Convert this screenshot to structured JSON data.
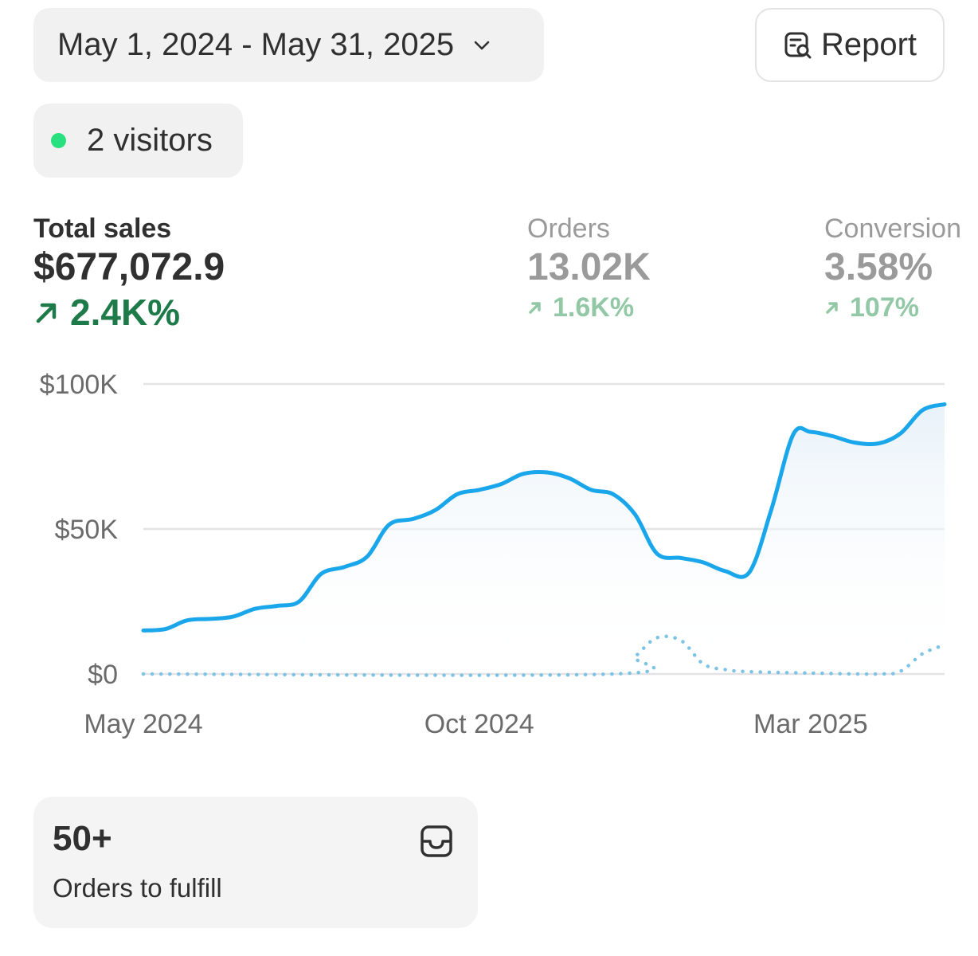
{
  "date_range": {
    "label": "May 1, 2024 - May 31, 2025"
  },
  "report_button": {
    "label": "Report"
  },
  "visitors": {
    "label": "2 visitors",
    "dot_color": "#29e07e"
  },
  "metrics": [
    {
      "label": "Total sales",
      "value": "$677,072.9",
      "change": "2.4K%",
      "active": true
    },
    {
      "label": "Orders",
      "value": "13.02K",
      "change": "1.6K%",
      "active": false
    },
    {
      "label": "Conversion",
      "value": "3.58%",
      "change": "107%",
      "active": false
    }
  ],
  "chart_data": {
    "type": "line",
    "y_ticks": [
      "$100K",
      "$50K",
      "$0"
    ],
    "x_ticks": [
      "May 2024",
      "Oct 2024",
      "Mar 2025"
    ],
    "ylim": [
      0,
      100000
    ],
    "grid": true,
    "series": [
      {
        "style": "solid",
        "color": "#1aa6ea",
        "points": [
          [
            "2024-05-01",
            15000
          ],
          [
            "2024-05-11",
            15500
          ],
          [
            "2024-05-21",
            18500
          ],
          [
            "2024-06-01",
            19000
          ],
          [
            "2024-06-11",
            19800
          ],
          [
            "2024-06-21",
            22500
          ],
          [
            "2024-07-01",
            23500
          ],
          [
            "2024-07-11",
            25000
          ],
          [
            "2024-07-21",
            34500
          ],
          [
            "2024-08-01",
            37000
          ],
          [
            "2024-08-11",
            40500
          ],
          [
            "2024-08-21",
            51500
          ],
          [
            "2024-09-01",
            53500
          ],
          [
            "2024-09-11",
            56500
          ],
          [
            "2024-09-21",
            62000
          ],
          [
            "2024-10-01",
            63500
          ],
          [
            "2024-10-11",
            65500
          ],
          [
            "2024-10-21",
            69000
          ],
          [
            "2024-11-01",
            69500
          ],
          [
            "2024-11-11",
            67500
          ],
          [
            "2024-11-21",
            63500
          ],
          [
            "2024-12-01",
            62000
          ],
          [
            "2024-12-11",
            55000
          ],
          [
            "2024-12-21",
            41500
          ],
          [
            "2025-01-01",
            40000
          ],
          [
            "2025-01-11",
            38500
          ],
          [
            "2025-01-21",
            35500
          ],
          [
            "2025-02-01",
            35000
          ],
          [
            "2025-02-11",
            56500
          ],
          [
            "2025-02-21",
            82500
          ],
          [
            "2025-03-01",
            83500
          ],
          [
            "2025-03-11",
            82000
          ],
          [
            "2025-03-21",
            79800
          ],
          [
            "2025-04-01",
            79500
          ],
          [
            "2025-04-11",
            83000
          ],
          [
            "2025-04-21",
            91000
          ],
          [
            "2025-05-01",
            93000
          ]
        ]
      },
      {
        "style": "dotted",
        "color": "#7cc3e6",
        "points": [
          [
            "2024-05-01",
            0
          ],
          [
            "2024-12-01",
            0
          ],
          [
            "2024-12-11",
            6000
          ],
          [
            "2024-12-21",
            12500
          ],
          [
            "2025-01-01",
            11500
          ],
          [
            "2025-01-11",
            3500
          ],
          [
            "2025-01-21",
            1500
          ],
          [
            "2025-02-01",
            800
          ],
          [
            "2025-03-01",
            300
          ],
          [
            "2025-04-01",
            0
          ],
          [
            "2025-04-11",
            1000
          ],
          [
            "2025-04-21",
            7000
          ],
          [
            "2025-05-01",
            10000
          ]
        ]
      }
    ]
  },
  "fulfill_card": {
    "count": "50+",
    "label": "Orders to fulfill"
  }
}
